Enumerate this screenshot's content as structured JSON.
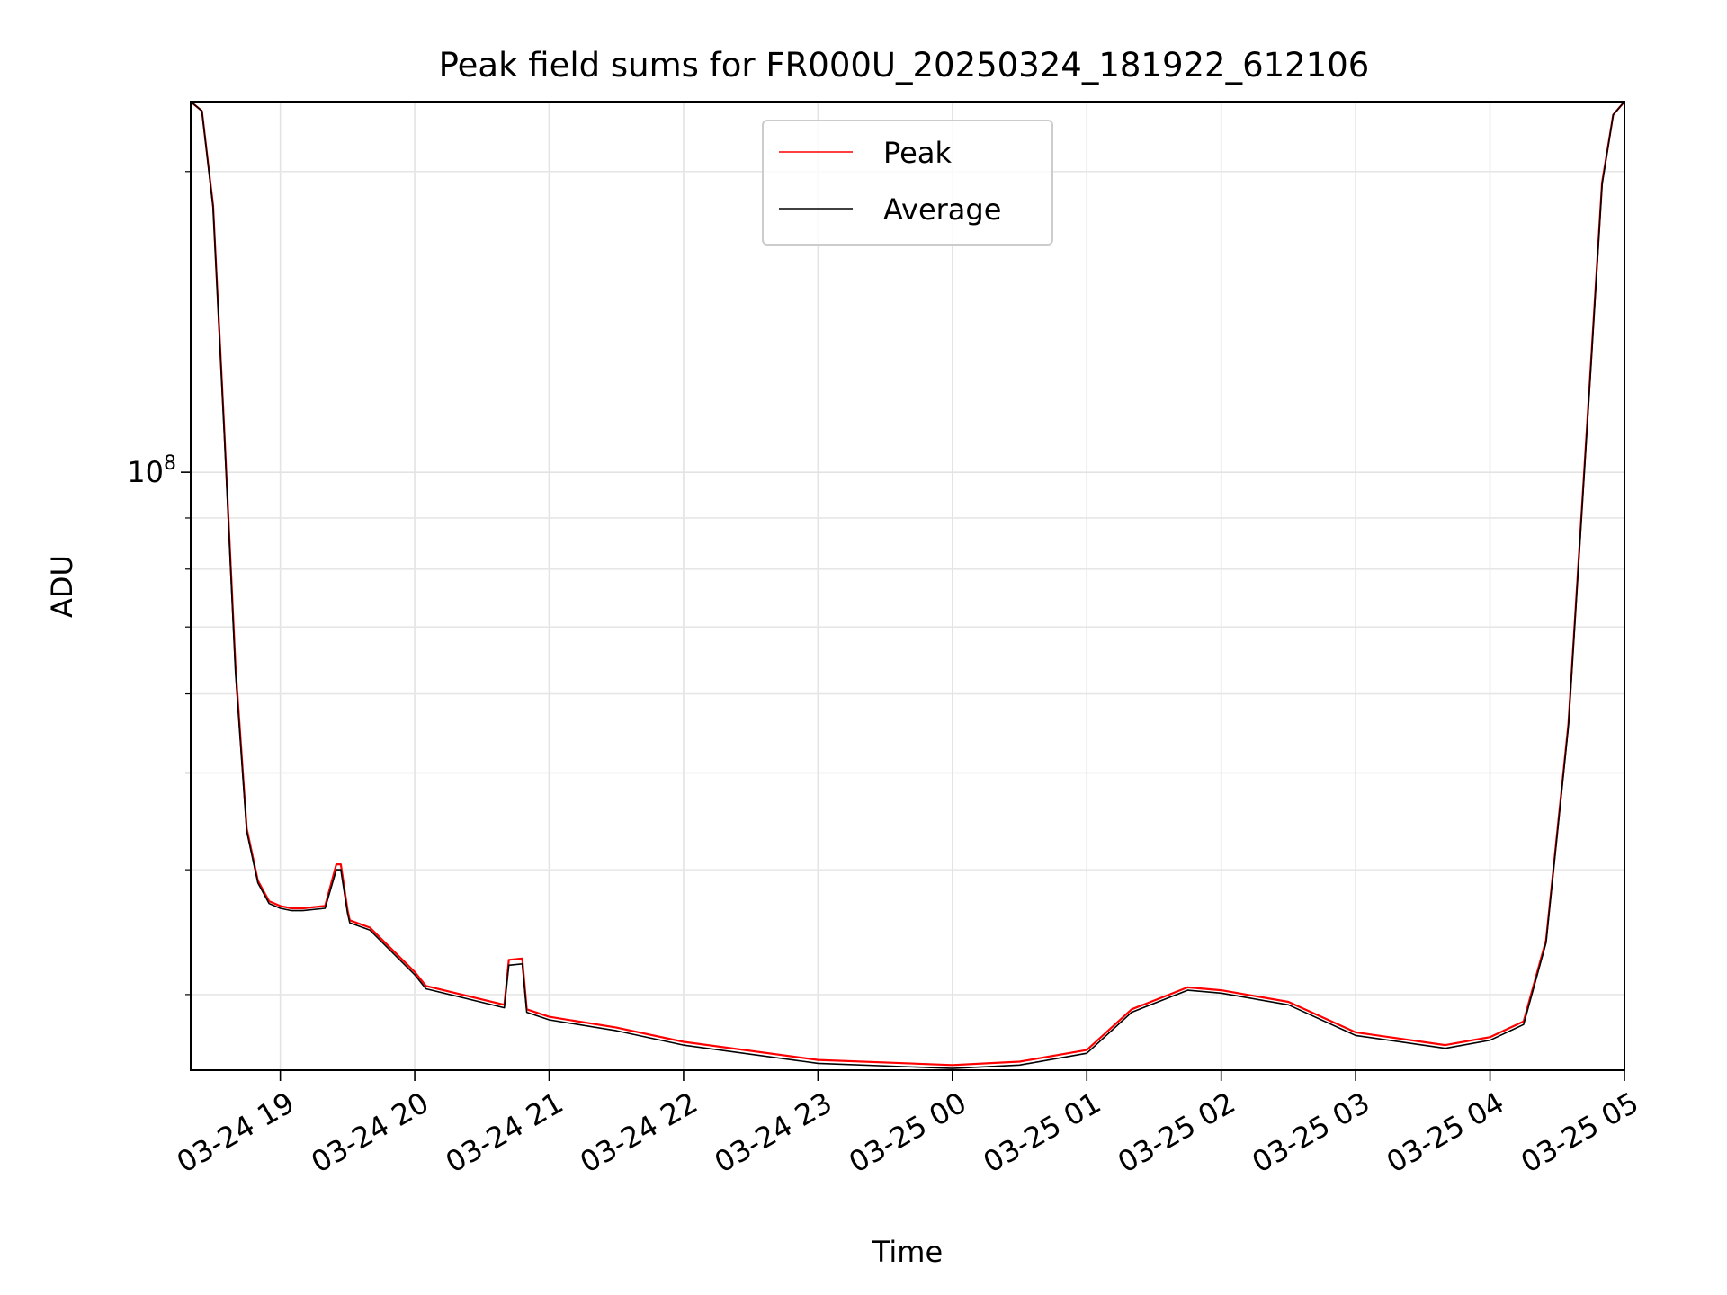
{
  "chart_data": {
    "type": "line",
    "title": "Peak field sums for FR000U_20250324_181922_612106",
    "xlabel": "Time",
    "ylabel": "ADU",
    "yscale": "log",
    "grid": true,
    "legend_position": "top-center",
    "xlim": [
      "2025-03-24 18:20",
      "2025-03-25 05:00"
    ],
    "ylim": [
      25200000,
      235000000
    ],
    "x_ticks": [
      "03-24 19",
      "03-24 20",
      "03-24 21",
      "03-24 22",
      "03-24 23",
      "03-25 00",
      "03-25 01",
      "03-25 02",
      "03-25 03",
      "03-25 04",
      "03-25 05"
    ],
    "y_ticks": [
      {
        "value": 100000000,
        "base": "10",
        "exp": "8"
      }
    ],
    "series": [
      {
        "name": "Peak",
        "color": "#ff0000",
        "x": [
          "2025-03-24 18:20",
          "2025-03-24 18:25",
          "2025-03-24 18:30",
          "2025-03-24 18:35",
          "2025-03-24 18:40",
          "2025-03-24 18:45",
          "2025-03-24 18:50",
          "2025-03-24 18:55",
          "2025-03-24 19:00",
          "2025-03-24 19:05",
          "2025-03-24 19:10",
          "2025-03-24 19:20",
          "2025-03-24 19:25",
          "2025-03-24 19:27",
          "2025-03-24 19:30",
          "2025-03-24 19:31",
          "2025-03-24 19:40",
          "2025-03-24 20:00",
          "2025-03-24 20:05",
          "2025-03-24 20:40",
          "2025-03-24 20:42",
          "2025-03-24 20:48",
          "2025-03-24 20:50",
          "2025-03-24 21:00",
          "2025-03-24 21:30",
          "2025-03-24 22:00",
          "2025-03-24 23:00",
          "2025-03-25 00:00",
          "2025-03-25 00:30",
          "2025-03-25 01:00",
          "2025-03-25 01:20",
          "2025-03-25 01:45",
          "2025-03-25 02:00",
          "2025-03-25 02:30",
          "2025-03-25 03:00",
          "2025-03-25 03:40",
          "2025-03-25 04:00",
          "2025-03-25 04:15",
          "2025-03-25 04:25",
          "2025-03-25 04:35",
          "2025-03-25 04:45",
          "2025-03-25 04:50",
          "2025-03-25 04:55",
          "2025-03-25 05:00"
        ],
        "y": [
          235000000,
          230000000,
          185000000,
          110000000,
          64000000,
          44000000,
          39000000,
          37200000,
          36800000,
          36600000,
          36600000,
          36800000,
          40500000,
          40500000,
          36500000,
          35600000,
          35000000,
          31600000,
          30600000,
          29300000,
          32500000,
          32600000,
          29000000,
          28500000,
          27800000,
          26900000,
          25800000,
          25500000,
          25700000,
          26400000,
          29000000,
          30500000,
          30300000,
          29500000,
          27500000,
          26700000,
          27200000,
          28200000,
          34000000,
          56000000,
          128000000,
          195000000,
          228000000,
          235000000
        ]
      },
      {
        "name": "Average",
        "color": "#000000",
        "x": [
          "2025-03-24 18:20",
          "2025-03-24 18:25",
          "2025-03-24 18:30",
          "2025-03-24 18:35",
          "2025-03-24 18:40",
          "2025-03-24 18:45",
          "2025-03-24 18:50",
          "2025-03-24 18:55",
          "2025-03-24 19:00",
          "2025-03-24 19:05",
          "2025-03-24 19:10",
          "2025-03-24 19:20",
          "2025-03-24 19:25",
          "2025-03-24 19:27",
          "2025-03-24 19:30",
          "2025-03-24 19:31",
          "2025-03-24 19:40",
          "2025-03-24 20:00",
          "2025-03-24 20:05",
          "2025-03-24 20:40",
          "2025-03-24 20:42",
          "2025-03-24 20:48",
          "2025-03-24 20:50",
          "2025-03-24 21:00",
          "2025-03-24 21:30",
          "2025-03-24 22:00",
          "2025-03-24 23:00",
          "2025-03-25 00:00",
          "2025-03-25 00:30",
          "2025-03-25 01:00",
          "2025-03-25 01:20",
          "2025-03-25 01:45",
          "2025-03-25 02:00",
          "2025-03-25 02:30",
          "2025-03-25 03:00",
          "2025-03-25 03:40",
          "2025-03-25 04:00",
          "2025-03-25 04:15",
          "2025-03-25 04:25",
          "2025-03-25 04:35",
          "2025-03-25 04:45",
          "2025-03-25 04:50",
          "2025-03-25 04:55",
          "2025-03-25 05:00"
        ],
        "y": [
          235000000,
          230000000,
          184000000,
          109000000,
          63000000,
          43700000,
          38800000,
          37000000,
          36600000,
          36400000,
          36400000,
          36600000,
          40000000,
          40000000,
          36200000,
          35400000,
          34800000,
          31400000,
          30400000,
          29100000,
          32100000,
          32200000,
          28800000,
          28300000,
          27600000,
          26700000,
          25600000,
          25300000,
          25500000,
          26200000,
          28800000,
          30300000,
          30100000,
          29300000,
          27300000,
          26500000,
          27000000,
          28000000,
          33800000,
          55700000,
          127000000,
          194000000,
          228000000,
          235000000
        ]
      }
    ]
  }
}
